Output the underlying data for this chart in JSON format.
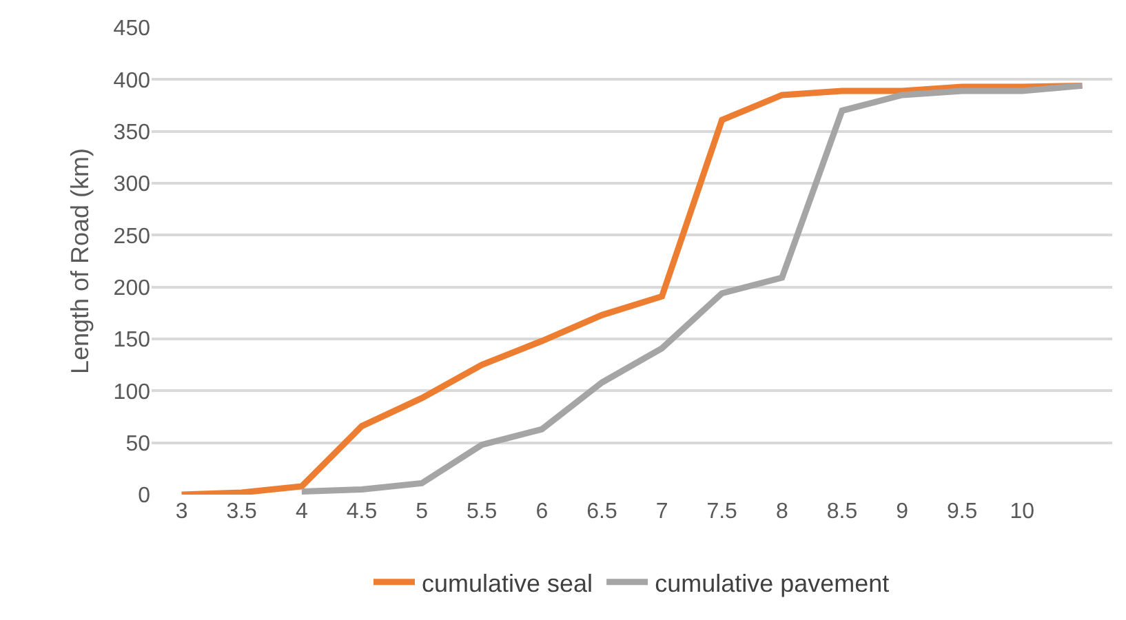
{
  "chart_data": {
    "type": "line",
    "ylabel": "Length of Road (km)",
    "categories": [
      "3",
      "3.5",
      "4",
      "4.5",
      "5",
      "5.5",
      "6",
      "6.5",
      "7",
      "7.5",
      "8",
      "8.5",
      "9",
      "9.5",
      "10",
      null
    ],
    "series": [
      {
        "name": "cumulative seal",
        "color": "#ed7d31",
        "values": [
          0,
          2,
          8,
          66,
          93,
          125,
          148,
          173,
          191,
          361,
          385,
          389,
          389,
          393,
          393,
          394
        ]
      },
      {
        "name": "cumulative pavement",
        "color": "#a5a5a5",
        "values": [
          null,
          null,
          3,
          5,
          11,
          48,
          63,
          108,
          141,
          194,
          209,
          370,
          385,
          389,
          389,
          394
        ]
      }
    ],
    "ylim": [
      0,
      450
    ],
    "yticks": [
      0,
      50,
      100,
      150,
      200,
      250,
      300,
      350,
      400,
      450
    ],
    "grid": "y",
    "legend": "bottom",
    "marker": "none",
    "line_style": "solid"
  }
}
